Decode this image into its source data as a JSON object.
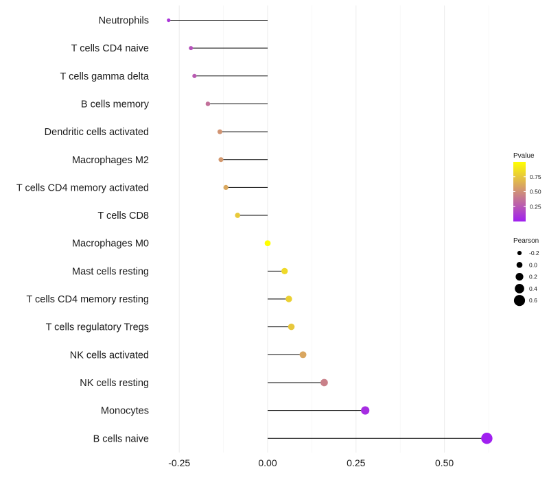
{
  "chart_data": {
    "type": "lollipop",
    "title": "",
    "xlabel": "",
    "ylabel": "",
    "xlim": [
      -0.3,
      0.63
    ],
    "x_ticks": [
      -0.25,
      0.0,
      0.25,
      0.5
    ],
    "x_tick_labels": [
      "-0.25",
      "0.00",
      "0.25",
      "0.50"
    ],
    "grid": true,
    "categories": [
      "Neutrophils",
      "T cells CD4 naive",
      "T cells gamma delta",
      "B cells memory",
      "Dendritic cells activated",
      "Macrophages M2",
      "T cells CD4 memory activated",
      "T cells CD8",
      "Macrophages M0",
      "Mast cells resting",
      "T cells CD4 memory resting",
      "T cells regulatory  Tregs",
      "NK cells activated",
      "NK cells resting",
      "Monocytes",
      "B cells naive"
    ],
    "values": [
      -0.28,
      -0.217,
      -0.207,
      -0.169,
      -0.135,
      -0.132,
      -0.118,
      -0.085,
      0.0,
      0.048,
      0.06,
      0.067,
      0.1,
      0.16,
      0.276,
      0.62
    ],
    "pvalues": [
      0.1,
      0.22,
      0.26,
      0.36,
      0.52,
      0.54,
      0.61,
      0.76,
      1.0,
      0.83,
      0.79,
      0.75,
      0.6,
      0.43,
      0.06,
      0.001
    ],
    "legend_pvalue": {
      "title": "Pvalue",
      "ticks": [
        0.25,
        0.5,
        0.75
      ],
      "tick_labels": [
        "0.25",
        "0.50",
        "0.75"
      ],
      "range": [
        0.0,
        1.0
      ],
      "colors": [
        "#a020f0",
        "#ffff00"
      ]
    },
    "legend_pearson": {
      "title": "Pearson",
      "values": [
        -0.2,
        0.0,
        0.2,
        0.4,
        0.6
      ],
      "labels": [
        "-0.2",
        "0.0",
        "0.2",
        "0.4",
        "0.6"
      ]
    },
    "legend_placement": "right"
  }
}
